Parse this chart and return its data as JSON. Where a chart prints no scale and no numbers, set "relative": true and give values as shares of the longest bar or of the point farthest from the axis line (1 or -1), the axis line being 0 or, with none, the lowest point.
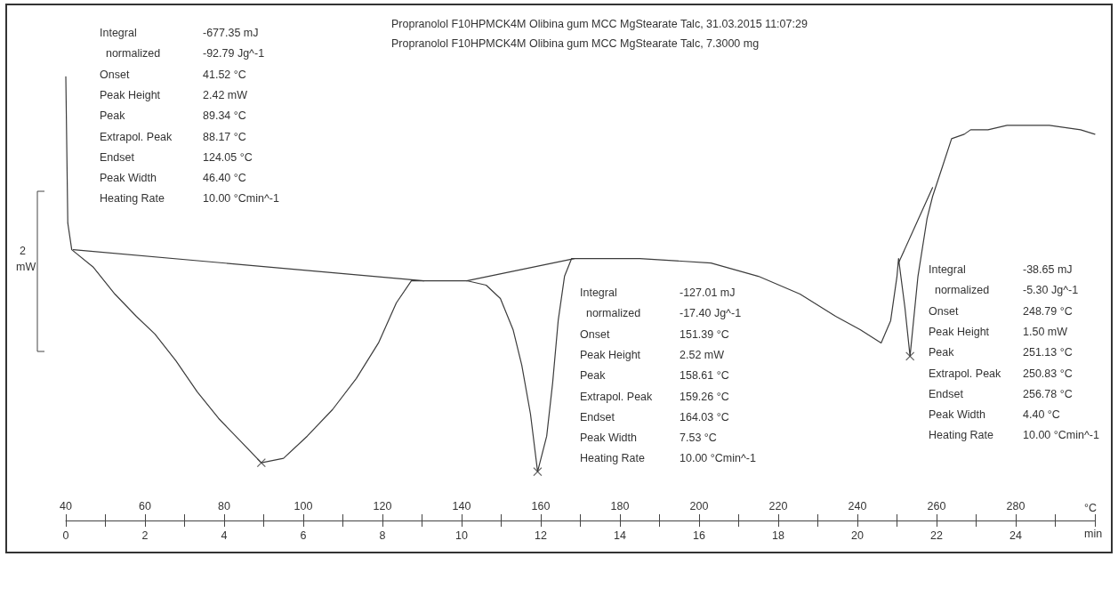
{
  "chart_data": {
    "type": "line",
    "relative": true,
    "title": "Propranolol F10HPMCK4M Olibina gum MCC MgStearate Talc, 31.03.2015 11:07:29",
    "subtitle": "Propranolol F10HPMCK4M Olibina gum MCC MgStearate Talc, 7.3000 mg",
    "xlabel": "°C",
    "x2label": "min",
    "xlim": [
      40,
      300
    ],
    "xticks": [
      40,
      {
        "value": 50,
        "label": null
      },
      60,
      {
        "value": 70,
        "label": null
      },
      80,
      {
        "value": 90,
        "label": null
      },
      100,
      {
        "value": 110,
        "label": null
      },
      120,
      {
        "value": 130,
        "label": null
      },
      140,
      {
        "value": 150,
        "label": null
      },
      160,
      {
        "value": 170,
        "label": null
      },
      180,
      {
        "value": 190,
        "label": null
      },
      200,
      {
        "value": 210,
        "label": null
      },
      220,
      {
        "value": 230,
        "label": null
      },
      240,
      {
        "value": 250,
        "label": null
      },
      260,
      {
        "value": 270,
        "label": null
      },
      280,
      {
        "value": 290,
        "label": null
      },
      {
        "value": 300,
        "label": null
      }
    ],
    "x2lim": [
      0,
      26
    ],
    "x2ticks": [
      0,
      {
        "value": 1,
        "label": null
      },
      2,
      {
        "value": 3,
        "label": null
      },
      4,
      {
        "value": 5,
        "label": null
      },
      6,
      {
        "value": 7,
        "label": null
      },
      8,
      {
        "value": 9,
        "label": null
      },
      10,
      {
        "value": 11,
        "label": null
      },
      12,
      {
        "value": 13,
        "label": null
      },
      14,
      {
        "value": 15,
        "label": null
      },
      16,
      {
        "value": 17,
        "label": null
      },
      18,
      {
        "value": 19,
        "label": null
      },
      20,
      {
        "value": 21,
        "label": null
      },
      22,
      {
        "value": 23,
        "label": null
      },
      24,
      {
        "value": 25,
        "label": null
      },
      {
        "value": 26,
        "label": null
      }
    ],
    "tick_labels": "x",
    "grid": false,
    "marker": "none",
    "line_style": "solid",
    "series": [
      {
        "type": "line",
        "color": "#3c3c3c",
        "x": [
          40,
          40.5,
          41.5,
          47,
          52.4,
          57.8,
          62.5,
          67.8,
          73.2,
          78.6,
          84,
          89.4,
          95,
          101,
          107.4,
          113.4,
          119,
          123.5,
          127.3,
          130.5,
          136,
          141.3,
          146.2,
          149.8,
          153,
          155.2,
          157.4,
          159.2,
          161.5,
          163,
          164.4,
          166,
          167.8,
          170,
          185,
          203,
          215,
          225.5,
          234.5,
          240.7,
          246,
          248.4,
          250,
          250.4,
          252,
          253.3,
          255.3,
          257.6,
          259,
          261.6,
          263.8,
          267,
          268.6,
          273,
          277.8,
          282.5,
          288.5,
          296.4,
          300
        ],
        "values": [
          1.0,
          0.67,
          0.61,
          0.57,
          0.51,
          0.46,
          0.42,
          0.36,
          0.29,
          0.23,
          0.18,
          0.13,
          0.14,
          0.19,
          0.25,
          0.32,
          0.4,
          0.49,
          0.54,
          0.54,
          0.54,
          0.54,
          0.53,
          0.5,
          0.43,
          0.35,
          0.24,
          0.11,
          0.19,
          0.31,
          0.45,
          0.55,
          0.59,
          0.59,
          0.59,
          0.58,
          0.55,
          0.51,
          0.46,
          0.43,
          0.4,
          0.45,
          0.55,
          0.59,
          0.48,
          0.37,
          0.55,
          0.68,
          0.73,
          0.8,
          0.86,
          0.87,
          0.88,
          0.88,
          0.89,
          0.89,
          0.89,
          0.88,
          0.87
        ]
      },
      {
        "type": "line",
        "color": "#3c3c3c",
        "x": [
          41.9,
          130.5
        ],
        "values": [
          0.61,
          0.54
        ]
      },
      {
        "type": "line",
        "color": "#3c3c3c",
        "x": [
          141.3,
          168.5
        ],
        "values": [
          0.54,
          0.59
        ]
      },
      {
        "type": "line",
        "color": "#3c3c3c",
        "x": [
          250.4,
          259
        ],
        "values": [
          0.58,
          0.75
        ]
      },
      {
        "type": "scatter",
        "color": "#3c3c3c",
        "marker": "cross",
        "x": [
          89.4,
          159.2,
          253.3
        ],
        "values": [
          0.13,
          0.11,
          0.37
        ]
      }
    ],
    "annotations": [
      "Integral",
      "-677.35 mJ",
      "  normalized",
      "-92.79 Jg^-1",
      "Onset",
      "41.52 °C",
      "Peak Height",
      "2.42 mW",
      "Peak",
      "89.34 °C",
      "Extrapol. Peak",
      "88.17 °C",
      "Endset",
      "124.05 °C",
      "Peak Width",
      "46.40 °C",
      "Heating Rate",
      "10.00 °Cmin^-1",
      "Integral",
      "-127.01 mJ",
      "  normalized",
      "-17.40 Jg^-1",
      "Onset",
      "151.39 °C",
      "Peak Height",
      "2.52 mW",
      "Peak",
      "158.61 °C",
      "Extrapol. Peak",
      "159.26 °C",
      "Endset",
      "164.03 °C",
      "Peak Width",
      "7.53 °C",
      "Heating Rate",
      "10.00 °Cmin^-1",
      "Integral",
      "-38.65 mJ",
      "  normalized",
      "-5.30 Jg^-1",
      "Onset",
      "248.79 °C",
      "Peak Height",
      "1.50 mW",
      "Peak",
      "251.13 °C",
      "Extrapol. Peak",
      "250.83 °C",
      "Endset",
      "256.78 °C",
      "Peak Width",
      "4.40 °C",
      "Heating Rate",
      "10.00 °Cmin^-1",
      "2",
      "mW"
    ]
  }
}
